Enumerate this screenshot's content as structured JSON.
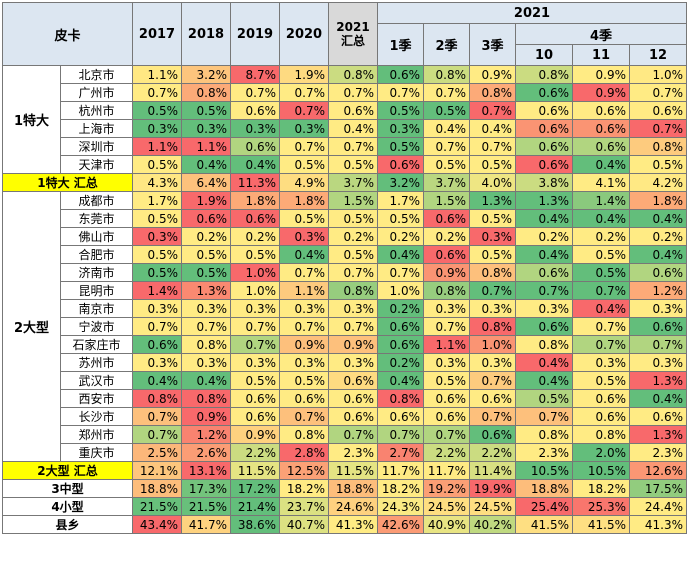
{
  "header": {
    "title": "皮卡",
    "years": [
      "2017",
      "2018",
      "2019",
      "2020"
    ],
    "summary": [
      "2021",
      "汇总"
    ],
    "year2021": "2021",
    "quarters": [
      "1季",
      "2季",
      "3季"
    ],
    "q4": "4季",
    "months": [
      "10",
      "11",
      "12"
    ]
  },
  "groups": [
    {
      "name": "1特大",
      "rows": [
        {
          "city": "北京市",
          "values": [
            "1.1%",
            "3.2%",
            "8.7%",
            "1.9%",
            "0.8%",
            "0.6%",
            "0.8%",
            "0.9%",
            "0.8%",
            "0.9%",
            "1.0%"
          ]
        },
        {
          "city": "广州市",
          "values": [
            "0.7%",
            "0.8%",
            "0.7%",
            "0.7%",
            "0.7%",
            "0.7%",
            "0.7%",
            "0.8%",
            "0.6%",
            "0.9%",
            "0.7%"
          ]
        },
        {
          "city": "杭州市",
          "values": [
            "0.5%",
            "0.5%",
            "0.6%",
            "0.7%",
            "0.6%",
            "0.5%",
            "0.5%",
            "0.7%",
            "0.6%",
            "0.6%",
            "0.6%"
          ]
        },
        {
          "city": "上海市",
          "values": [
            "0.3%",
            "0.3%",
            "0.3%",
            "0.3%",
            "0.4%",
            "0.3%",
            "0.4%",
            "0.4%",
            "0.6%",
            "0.6%",
            "0.7%"
          ]
        },
        {
          "city": "深圳市",
          "values": [
            "1.1%",
            "1.1%",
            "0.6%",
            "0.7%",
            "0.7%",
            "0.5%",
            "0.7%",
            "0.7%",
            "0.6%",
            "0.6%",
            "0.8%"
          ]
        },
        {
          "city": "天津市",
          "values": [
            "0.5%",
            "0.4%",
            "0.4%",
            "0.5%",
            "0.5%",
            "0.6%",
            "0.5%",
            "0.5%",
            "0.6%",
            "0.4%",
            "0.5%"
          ]
        }
      ],
      "total": {
        "label": "1特大 汇总",
        "values": [
          "4.3%",
          "6.4%",
          "11.3%",
          "4.9%",
          "3.7%",
          "3.2%",
          "3.7%",
          "4.0%",
          "3.8%",
          "4.1%",
          "4.2%"
        ]
      }
    },
    {
      "name": "2大型",
      "rows": [
        {
          "city": "成都市",
          "values": [
            "1.7%",
            "1.9%",
            "1.8%",
            "1.8%",
            "1.5%",
            "1.7%",
            "1.5%",
            "1.3%",
            "1.3%",
            "1.4%",
            "1.8%"
          ]
        },
        {
          "city": "东莞市",
          "values": [
            "0.5%",
            "0.6%",
            "0.6%",
            "0.5%",
            "0.5%",
            "0.5%",
            "0.6%",
            "0.5%",
            "0.4%",
            "0.4%",
            "0.4%"
          ]
        },
        {
          "city": "佛山市",
          "values": [
            "0.3%",
            "0.2%",
            "0.2%",
            "0.3%",
            "0.2%",
            "0.2%",
            "0.2%",
            "0.3%",
            "0.2%",
            "0.2%",
            "0.2%"
          ]
        },
        {
          "city": "合肥市",
          "values": [
            "0.5%",
            "0.5%",
            "0.5%",
            "0.4%",
            "0.5%",
            "0.4%",
            "0.6%",
            "0.5%",
            "0.4%",
            "0.5%",
            "0.4%"
          ]
        },
        {
          "city": "济南市",
          "values": [
            "0.5%",
            "0.5%",
            "1.0%",
            "0.7%",
            "0.7%",
            "0.7%",
            "0.9%",
            "0.8%",
            "0.6%",
            "0.5%",
            "0.6%"
          ]
        },
        {
          "city": "昆明市",
          "values": [
            "1.4%",
            "1.3%",
            "1.0%",
            "1.1%",
            "0.8%",
            "1.0%",
            "0.8%",
            "0.7%",
            "0.7%",
            "0.7%",
            "1.2%"
          ]
        },
        {
          "city": "南京市",
          "values": [
            "0.3%",
            "0.3%",
            "0.3%",
            "0.3%",
            "0.3%",
            "0.2%",
            "0.3%",
            "0.3%",
            "0.3%",
            "0.4%",
            "0.3%"
          ]
        },
        {
          "city": "宁波市",
          "values": [
            "0.7%",
            "0.7%",
            "0.7%",
            "0.7%",
            "0.7%",
            "0.6%",
            "0.7%",
            "0.8%",
            "0.6%",
            "0.7%",
            "0.6%"
          ]
        },
        {
          "city": "石家庄市",
          "values": [
            "0.6%",
            "0.8%",
            "0.7%",
            "0.9%",
            "0.9%",
            "0.6%",
            "1.1%",
            "1.0%",
            "0.8%",
            "0.7%",
            "0.7%"
          ]
        },
        {
          "city": "苏州市",
          "values": [
            "0.3%",
            "0.3%",
            "0.3%",
            "0.3%",
            "0.3%",
            "0.2%",
            "0.3%",
            "0.3%",
            "0.4%",
            "0.3%",
            "0.3%"
          ]
        },
        {
          "city": "武汉市",
          "values": [
            "0.4%",
            "0.4%",
            "0.5%",
            "0.5%",
            "0.6%",
            "0.4%",
            "0.5%",
            "0.7%",
            "0.4%",
            "0.5%",
            "1.3%"
          ]
        },
        {
          "city": "西安市",
          "values": [
            "0.8%",
            "0.8%",
            "0.6%",
            "0.6%",
            "0.6%",
            "0.8%",
            "0.6%",
            "0.6%",
            "0.5%",
            "0.6%",
            "0.4%"
          ]
        },
        {
          "city": "长沙市",
          "values": [
            "0.7%",
            "0.9%",
            "0.6%",
            "0.7%",
            "0.6%",
            "0.6%",
            "0.6%",
            "0.7%",
            "0.7%",
            "0.6%",
            "0.6%"
          ]
        },
        {
          "city": "郑州市",
          "values": [
            "0.7%",
            "1.2%",
            "0.9%",
            "0.8%",
            "0.7%",
            "0.7%",
            "0.7%",
            "0.6%",
            "0.8%",
            "0.8%",
            "1.3%"
          ]
        },
        {
          "city": "重庆市",
          "values": [
            "2.5%",
            "2.6%",
            "2.2%",
            "2.8%",
            "2.3%",
            "2.7%",
            "2.2%",
            "2.2%",
            "2.3%",
            "2.0%",
            "2.3%"
          ]
        }
      ],
      "total": {
        "label": "2大型 汇总",
        "values": [
          "12.1%",
          "13.1%",
          "11.5%",
          "12.5%",
          "11.5%",
          "11.7%",
          "11.7%",
          "11.4%",
          "10.5%",
          "10.5%",
          "12.6%"
        ]
      }
    }
  ],
  "others": [
    {
      "label": "3中型",
      "values": [
        "18.8%",
        "17.3%",
        "17.2%",
        "18.2%",
        "18.8%",
        "18.2%",
        "19.2%",
        "19.9%",
        "18.8%",
        "18.2%",
        "17.5%"
      ]
    },
    {
      "label": "4小型",
      "values": [
        "21.5%",
        "21.5%",
        "21.4%",
        "23.7%",
        "24.6%",
        "24.3%",
        "24.5%",
        "24.5%",
        "25.4%",
        "25.3%",
        "24.4%"
      ]
    },
    {
      "label": "县乡",
      "values": [
        "43.4%",
        "41.7%",
        "38.6%",
        "40.7%",
        "41.3%",
        "42.6%",
        "40.9%",
        "40.2%",
        "41.5%",
        "41.5%",
        "41.3%"
      ]
    }
  ]
}
